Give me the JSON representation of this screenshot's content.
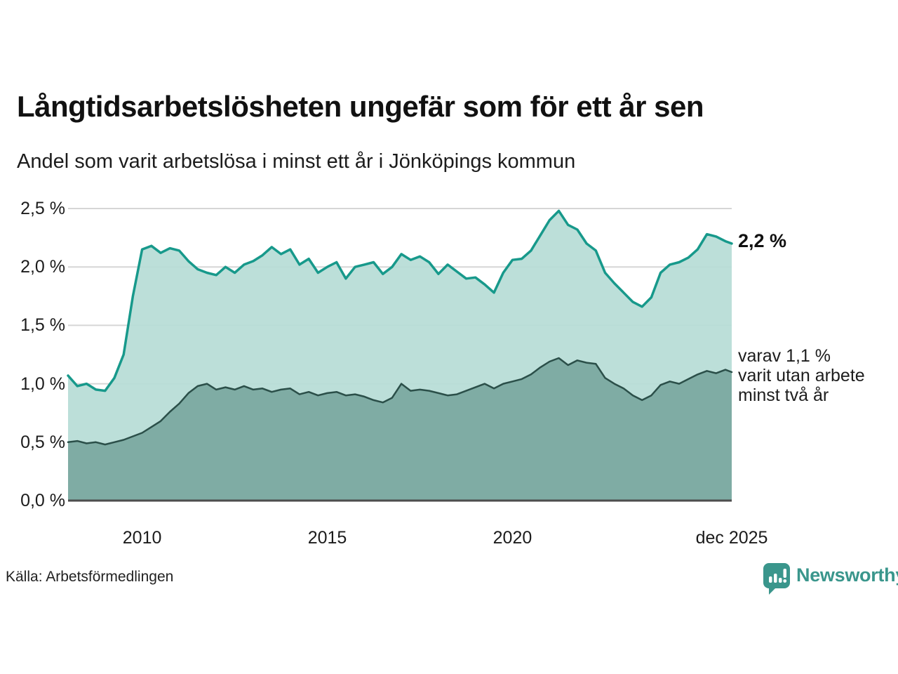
{
  "header": {
    "title": "Långtidsarbetslösheten ungefär som för ett år sen",
    "subtitle": "Andel som varit arbetslösa i minst ett år i Jönköpings kommun"
  },
  "chart_data": {
    "type": "area",
    "title": "Långtidsarbetslösheten ungefär som för ett år sen",
    "subtitle": "Andel som varit arbetslösa i minst ett år i Jönköpings kommun",
    "x_unit": "decimal_year",
    "ylim": [
      0,
      2.5
    ],
    "grid": true,
    "x": [
      2008.0,
      2008.25,
      2008.5,
      2008.75,
      2009.0,
      2009.25,
      2009.5,
      2009.75,
      2010.0,
      2010.25,
      2010.5,
      2010.75,
      2011.0,
      2011.25,
      2011.5,
      2011.75,
      2012.0,
      2012.25,
      2012.5,
      2012.75,
      2013.0,
      2013.25,
      2013.5,
      2013.75,
      2014.0,
      2014.25,
      2014.5,
      2014.75,
      2015.0,
      2015.25,
      2015.5,
      2015.75,
      2016.0,
      2016.25,
      2016.5,
      2016.75,
      2017.0,
      2017.25,
      2017.5,
      2017.75,
      2018.0,
      2018.25,
      2018.5,
      2018.75,
      2019.0,
      2019.25,
      2019.5,
      2019.75,
      2020.0,
      2020.25,
      2020.5,
      2020.75,
      2021.0,
      2021.25,
      2021.5,
      2021.75,
      2022.0,
      2022.25,
      2022.5,
      2022.75,
      2023.0,
      2023.25,
      2023.5,
      2023.75,
      2024.0,
      2024.25,
      2024.5,
      2024.75,
      2025.0,
      2025.25,
      2025.5,
      2025.75,
      2025.92
    ],
    "series": [
      {
        "name": "Andel arbetslösa minst ett år",
        "line_color": "#17998b",
        "fill_color": "#b6dcd6",
        "line_width": 3.5,
        "values": [
          1.07,
          0.98,
          1.0,
          0.95,
          0.94,
          1.05,
          1.25,
          1.75,
          2.15,
          2.18,
          2.12,
          2.16,
          2.14,
          2.05,
          1.98,
          1.95,
          1.93,
          2.0,
          1.95,
          2.02,
          2.05,
          2.1,
          2.17,
          2.11,
          2.15,
          2.02,
          2.07,
          1.95,
          2.0,
          2.04,
          1.9,
          2.0,
          2.02,
          2.04,
          1.94,
          2.0,
          2.11,
          2.06,
          2.09,
          2.04,
          1.94,
          2.02,
          1.96,
          1.9,
          1.91,
          1.85,
          1.78,
          1.95,
          2.06,
          2.07,
          2.14,
          2.27,
          2.4,
          2.48,
          2.36,
          2.32,
          2.2,
          2.14,
          1.95,
          1.86,
          1.78,
          1.7,
          1.66,
          1.74,
          1.95,
          2.02,
          2.04,
          2.08,
          2.15,
          2.28,
          2.26,
          2.22,
          2.2
        ]
      },
      {
        "name": "Varav utan arbete minst två år",
        "line_color": "#2b4f49",
        "fill_color": "#79a7a0",
        "line_width": 2.5,
        "values": [
          0.5,
          0.51,
          0.49,
          0.5,
          0.48,
          0.5,
          0.52,
          0.55,
          0.58,
          0.63,
          0.68,
          0.76,
          0.83,
          0.92,
          0.98,
          1.0,
          0.95,
          0.97,
          0.95,
          0.98,
          0.95,
          0.96,
          0.93,
          0.95,
          0.96,
          0.91,
          0.93,
          0.9,
          0.92,
          0.93,
          0.9,
          0.91,
          0.89,
          0.86,
          0.84,
          0.88,
          1.0,
          0.94,
          0.95,
          0.94,
          0.92,
          0.9,
          0.91,
          0.94,
          0.97,
          1.0,
          0.96,
          1.0,
          1.02,
          1.04,
          1.08,
          1.14,
          1.19,
          1.22,
          1.16,
          1.2,
          1.18,
          1.17,
          1.05,
          1.0,
          0.96,
          0.9,
          0.86,
          0.9,
          0.99,
          1.02,
          1.0,
          1.04,
          1.08,
          1.11,
          1.09,
          1.12,
          1.1
        ]
      }
    ],
    "y_ticks": [
      {
        "value": 2.5,
        "label": "2,5 %"
      },
      {
        "value": 2.0,
        "label": "2,0 %"
      },
      {
        "value": 1.5,
        "label": "1,5 %"
      },
      {
        "value": 1.0,
        "label": "1,0 %"
      },
      {
        "value": 0.5,
        "label": "0,5 %"
      },
      {
        "value": 0.0,
        "label": "0,0 %"
      }
    ],
    "x_ticks": [
      {
        "value": 2010,
        "label": "2010"
      },
      {
        "value": 2015,
        "label": "2015"
      },
      {
        "value": 2020,
        "label": "2020"
      },
      {
        "value": 2025.92,
        "label": "dec 2025"
      }
    ],
    "annotations": {
      "latest_total": "2,2 %",
      "two_year_note": "varav 1,1 %\nvarit utan arbete\nminst två år"
    },
    "colors": {
      "grid": "#d6d6d6",
      "baseline": "#4d4d4d",
      "total_line": "#17998b",
      "total_fill": "#b6dcd6",
      "two_year_line": "#2b4f49",
      "two_year_fill": "#79a7a0",
      "brand_teal": "#3a968c"
    }
  },
  "footer": {
    "source": "Källa: Arbetsförmedlingen",
    "brand": "Newsworthy"
  }
}
